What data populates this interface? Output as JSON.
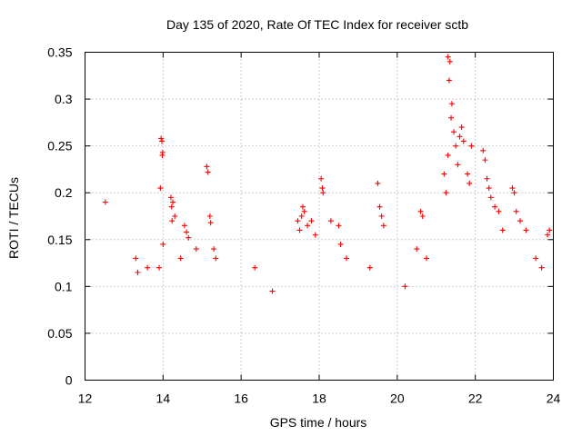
{
  "chart_data": {
    "type": "scatter",
    "title": "Day 135 of 2020, Rate Of TEC Index for receiver sctb",
    "xlabel": "GPS time / hours",
    "ylabel": "ROTI / TECUs",
    "xlim": [
      12,
      24
    ],
    "ylim": [
      0,
      0.35
    ],
    "xticks": [
      12,
      14,
      16,
      18,
      20,
      22,
      24
    ],
    "xtick_labels": [
      "12",
      "14",
      "16",
      "18",
      "20",
      "22",
      "24"
    ],
    "yticks": [
      0,
      0.05,
      0.1,
      0.15,
      0.2,
      0.25,
      0.3,
      0.35
    ],
    "ytick_labels": [
      "0",
      "0.05",
      "0.1",
      "0.15",
      "0.2",
      "0.25",
      "0.3",
      "0.35"
    ],
    "grid": true,
    "marker": "+",
    "series": [
      {
        "name": "ROTI",
        "color": "#ff0000",
        "points": [
          [
            12.52,
            0.19
          ],
          [
            13.95,
            0.258
          ],
          [
            13.97,
            0.255
          ],
          [
            13.99,
            0.243
          ],
          [
            13.98,
            0.24
          ],
          [
            13.93,
            0.205
          ],
          [
            14.0,
            0.145
          ],
          [
            14.2,
            0.195
          ],
          [
            14.25,
            0.19
          ],
          [
            14.22,
            0.185
          ],
          [
            14.3,
            0.175
          ],
          [
            14.23,
            0.17
          ],
          [
            14.55,
            0.165
          ],
          [
            14.6,
            0.158
          ],
          [
            14.65,
            0.152
          ],
          [
            15.12,
            0.228
          ],
          [
            15.15,
            0.222
          ],
          [
            15.2,
            0.175
          ],
          [
            15.22,
            0.168
          ],
          [
            15.3,
            0.14
          ],
          [
            15.35,
            0.13
          ],
          [
            13.3,
            0.13
          ],
          [
            13.6,
            0.12
          ],
          [
            13.35,
            0.115
          ],
          [
            13.9,
            0.12
          ],
          [
            14.45,
            0.13
          ],
          [
            14.85,
            0.14
          ],
          [
            16.35,
            0.12
          ],
          [
            16.8,
            0.095
          ],
          [
            17.45,
            0.17
          ],
          [
            17.5,
            0.16
          ],
          [
            17.55,
            0.175
          ],
          [
            17.7,
            0.165
          ],
          [
            17.8,
            0.17
          ],
          [
            17.9,
            0.155
          ],
          [
            18.05,
            0.215
          ],
          [
            18.08,
            0.205
          ],
          [
            18.1,
            0.2
          ],
          [
            17.58,
            0.185
          ],
          [
            17.62,
            0.18
          ],
          [
            18.3,
            0.17
          ],
          [
            18.5,
            0.165
          ],
          [
            18.55,
            0.145
          ],
          [
            18.7,
            0.13
          ],
          [
            19.5,
            0.21
          ],
          [
            19.55,
            0.185
          ],
          [
            19.6,
            0.175
          ],
          [
            19.65,
            0.165
          ],
          [
            19.3,
            0.12
          ],
          [
            20.2,
            0.1
          ],
          [
            20.5,
            0.14
          ],
          [
            20.6,
            0.18
          ],
          [
            20.65,
            0.175
          ],
          [
            20.75,
            0.13
          ],
          [
            21.3,
            0.345
          ],
          [
            21.35,
            0.34
          ],
          [
            21.33,
            0.32
          ],
          [
            21.4,
            0.295
          ],
          [
            21.38,
            0.28
          ],
          [
            21.45,
            0.265
          ],
          [
            21.5,
            0.25
          ],
          [
            21.6,
            0.26
          ],
          [
            21.65,
            0.27
          ],
          [
            21.7,
            0.255
          ],
          [
            21.2,
            0.22
          ],
          [
            21.25,
            0.2
          ],
          [
            21.3,
            0.24
          ],
          [
            21.55,
            0.23
          ],
          [
            21.8,
            0.22
          ],
          [
            21.85,
            0.21
          ],
          [
            21.9,
            0.25
          ],
          [
            22.2,
            0.245
          ],
          [
            22.25,
            0.235
          ],
          [
            22.3,
            0.215
          ],
          [
            22.35,
            0.205
          ],
          [
            22.4,
            0.195
          ],
          [
            22.5,
            0.185
          ],
          [
            22.6,
            0.18
          ],
          [
            22.7,
            0.16
          ],
          [
            22.95,
            0.205
          ],
          [
            23.0,
            0.2
          ],
          [
            23.05,
            0.18
          ],
          [
            23.15,
            0.17
          ],
          [
            23.3,
            0.16
          ],
          [
            23.55,
            0.13
          ],
          [
            23.7,
            0.12
          ],
          [
            23.85,
            0.155
          ],
          [
            23.9,
            0.16
          ]
        ]
      }
    ]
  }
}
